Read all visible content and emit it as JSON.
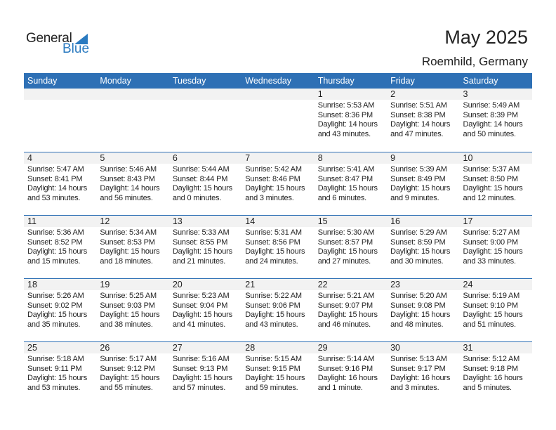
{
  "logo": {
    "text1": "General",
    "text2": "Blue"
  },
  "title": "May 2025",
  "location": "Roemhild, Germany",
  "colors": {
    "header": "#2e70b5",
    "brand": "#2a7ac0",
    "day_strip": "#f2f2f2"
  },
  "weekdays": [
    "Sunday",
    "Monday",
    "Tuesday",
    "Wednesday",
    "Thursday",
    "Friday",
    "Saturday"
  ],
  "weeks": [
    [
      null,
      null,
      null,
      null,
      {
        "day": "1",
        "sunrise": "Sunrise: 5:53 AM",
        "sunset": "Sunset: 8:36 PM",
        "daylight1": "Daylight: 14 hours",
        "daylight2": "and 43 minutes."
      },
      {
        "day": "2",
        "sunrise": "Sunrise: 5:51 AM",
        "sunset": "Sunset: 8:38 PM",
        "daylight1": "Daylight: 14 hours",
        "daylight2": "and 47 minutes."
      },
      {
        "day": "3",
        "sunrise": "Sunrise: 5:49 AM",
        "sunset": "Sunset: 8:39 PM",
        "daylight1": "Daylight: 14 hours",
        "daylight2": "and 50 minutes."
      }
    ],
    [
      {
        "day": "4",
        "sunrise": "Sunrise: 5:47 AM",
        "sunset": "Sunset: 8:41 PM",
        "daylight1": "Daylight: 14 hours",
        "daylight2": "and 53 minutes."
      },
      {
        "day": "5",
        "sunrise": "Sunrise: 5:46 AM",
        "sunset": "Sunset: 8:43 PM",
        "daylight1": "Daylight: 14 hours",
        "daylight2": "and 56 minutes."
      },
      {
        "day": "6",
        "sunrise": "Sunrise: 5:44 AM",
        "sunset": "Sunset: 8:44 PM",
        "daylight1": "Daylight: 15 hours",
        "daylight2": "and 0 minutes."
      },
      {
        "day": "7",
        "sunrise": "Sunrise: 5:42 AM",
        "sunset": "Sunset: 8:46 PM",
        "daylight1": "Daylight: 15 hours",
        "daylight2": "and 3 minutes."
      },
      {
        "day": "8",
        "sunrise": "Sunrise: 5:41 AM",
        "sunset": "Sunset: 8:47 PM",
        "daylight1": "Daylight: 15 hours",
        "daylight2": "and 6 minutes."
      },
      {
        "day": "9",
        "sunrise": "Sunrise: 5:39 AM",
        "sunset": "Sunset: 8:49 PM",
        "daylight1": "Daylight: 15 hours",
        "daylight2": "and 9 minutes."
      },
      {
        "day": "10",
        "sunrise": "Sunrise: 5:37 AM",
        "sunset": "Sunset: 8:50 PM",
        "daylight1": "Daylight: 15 hours",
        "daylight2": "and 12 minutes."
      }
    ],
    [
      {
        "day": "11",
        "sunrise": "Sunrise: 5:36 AM",
        "sunset": "Sunset: 8:52 PM",
        "daylight1": "Daylight: 15 hours",
        "daylight2": "and 15 minutes."
      },
      {
        "day": "12",
        "sunrise": "Sunrise: 5:34 AM",
        "sunset": "Sunset: 8:53 PM",
        "daylight1": "Daylight: 15 hours",
        "daylight2": "and 18 minutes."
      },
      {
        "day": "13",
        "sunrise": "Sunrise: 5:33 AM",
        "sunset": "Sunset: 8:55 PM",
        "daylight1": "Daylight: 15 hours",
        "daylight2": "and 21 minutes."
      },
      {
        "day": "14",
        "sunrise": "Sunrise: 5:31 AM",
        "sunset": "Sunset: 8:56 PM",
        "daylight1": "Daylight: 15 hours",
        "daylight2": "and 24 minutes."
      },
      {
        "day": "15",
        "sunrise": "Sunrise: 5:30 AM",
        "sunset": "Sunset: 8:57 PM",
        "daylight1": "Daylight: 15 hours",
        "daylight2": "and 27 minutes."
      },
      {
        "day": "16",
        "sunrise": "Sunrise: 5:29 AM",
        "sunset": "Sunset: 8:59 PM",
        "daylight1": "Daylight: 15 hours",
        "daylight2": "and 30 minutes."
      },
      {
        "day": "17",
        "sunrise": "Sunrise: 5:27 AM",
        "sunset": "Sunset: 9:00 PM",
        "daylight1": "Daylight: 15 hours",
        "daylight2": "and 33 minutes."
      }
    ],
    [
      {
        "day": "18",
        "sunrise": "Sunrise: 5:26 AM",
        "sunset": "Sunset: 9:02 PM",
        "daylight1": "Daylight: 15 hours",
        "daylight2": "and 35 minutes."
      },
      {
        "day": "19",
        "sunrise": "Sunrise: 5:25 AM",
        "sunset": "Sunset: 9:03 PM",
        "daylight1": "Daylight: 15 hours",
        "daylight2": "and 38 minutes."
      },
      {
        "day": "20",
        "sunrise": "Sunrise: 5:23 AM",
        "sunset": "Sunset: 9:04 PM",
        "daylight1": "Daylight: 15 hours",
        "daylight2": "and 41 minutes."
      },
      {
        "day": "21",
        "sunrise": "Sunrise: 5:22 AM",
        "sunset": "Sunset: 9:06 PM",
        "daylight1": "Daylight: 15 hours",
        "daylight2": "and 43 minutes."
      },
      {
        "day": "22",
        "sunrise": "Sunrise: 5:21 AM",
        "sunset": "Sunset: 9:07 PM",
        "daylight1": "Daylight: 15 hours",
        "daylight2": "and 46 minutes."
      },
      {
        "day": "23",
        "sunrise": "Sunrise: 5:20 AM",
        "sunset": "Sunset: 9:08 PM",
        "daylight1": "Daylight: 15 hours",
        "daylight2": "and 48 minutes."
      },
      {
        "day": "24",
        "sunrise": "Sunrise: 5:19 AM",
        "sunset": "Sunset: 9:10 PM",
        "daylight1": "Daylight: 15 hours",
        "daylight2": "and 51 minutes."
      }
    ],
    [
      {
        "day": "25",
        "sunrise": "Sunrise: 5:18 AM",
        "sunset": "Sunset: 9:11 PM",
        "daylight1": "Daylight: 15 hours",
        "daylight2": "and 53 minutes."
      },
      {
        "day": "26",
        "sunrise": "Sunrise: 5:17 AM",
        "sunset": "Sunset: 9:12 PM",
        "daylight1": "Daylight: 15 hours",
        "daylight2": "and 55 minutes."
      },
      {
        "day": "27",
        "sunrise": "Sunrise: 5:16 AM",
        "sunset": "Sunset: 9:13 PM",
        "daylight1": "Daylight: 15 hours",
        "daylight2": "and 57 minutes."
      },
      {
        "day": "28",
        "sunrise": "Sunrise: 5:15 AM",
        "sunset": "Sunset: 9:15 PM",
        "daylight1": "Daylight: 15 hours",
        "daylight2": "and 59 minutes."
      },
      {
        "day": "29",
        "sunrise": "Sunrise: 5:14 AM",
        "sunset": "Sunset: 9:16 PM",
        "daylight1": "Daylight: 16 hours",
        "daylight2": "and 1 minute."
      },
      {
        "day": "30",
        "sunrise": "Sunrise: 5:13 AM",
        "sunset": "Sunset: 9:17 PM",
        "daylight1": "Daylight: 16 hours",
        "daylight2": "and 3 minutes."
      },
      {
        "day": "31",
        "sunrise": "Sunrise: 5:12 AM",
        "sunset": "Sunset: 9:18 PM",
        "daylight1": "Daylight: 16 hours",
        "daylight2": "and 5 minutes."
      }
    ]
  ]
}
